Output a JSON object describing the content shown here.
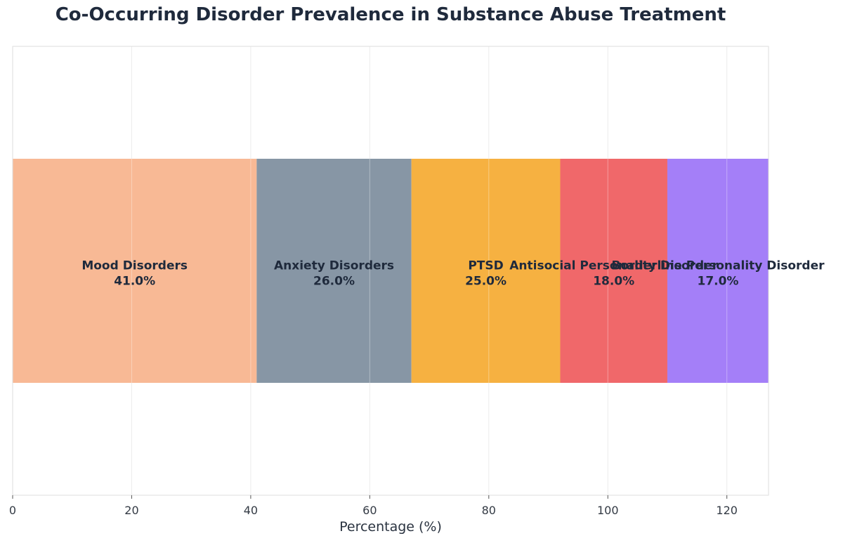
{
  "chart_data": {
    "type": "bar",
    "orientation": "horizontal",
    "stacked": true,
    "title": "Co-Occurring Disorder Prevalence in Substance Abuse Treatment",
    "xlabel": "Percentage (%)",
    "ylabel": "",
    "xlim": [
      0,
      127
    ],
    "xticks": [
      0,
      20,
      40,
      60,
      80,
      100,
      120
    ],
    "grid": true,
    "series": [
      {
        "name": "Mood Disorders",
        "value": 41.0,
        "label": "41.0%",
        "color": "#F8B995"
      },
      {
        "name": "Anxiety Disorders",
        "value": 26.0,
        "label": "26.0%",
        "color": "#8796A5"
      },
      {
        "name": "PTSD",
        "value": 25.0,
        "label": "25.0%",
        "color": "#F6B141"
      },
      {
        "name": "Antisocial Personality Disorder",
        "value": 18.0,
        "label": "18.0%",
        "color": "#F0686A"
      },
      {
        "name": "Borderline Personality Disorder",
        "value": 17.0,
        "label": "17.0%",
        "color": "#A47FF8"
      }
    ]
  }
}
